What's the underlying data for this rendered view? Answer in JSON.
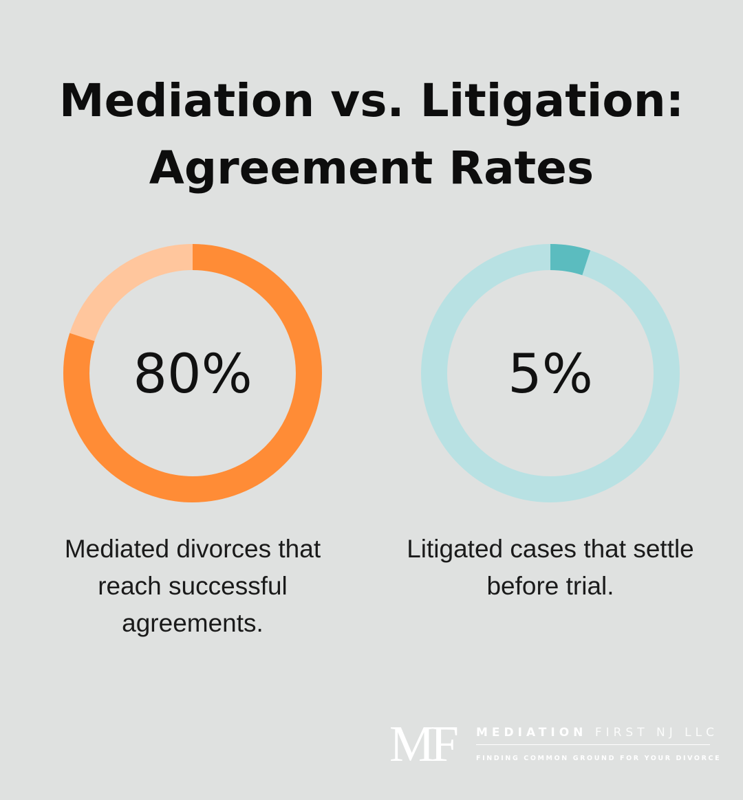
{
  "title": "Mediation vs. Litigation: Agreement Rates",
  "chart_data": [
    {
      "type": "donut",
      "value": 80,
      "label": "80%",
      "caption": "Mediated divorces that reach successful agreements.",
      "colors": {
        "filled": "#ff8c36",
        "remainder": "#ffc69d"
      }
    },
    {
      "type": "donut",
      "value": 5,
      "label": "5%",
      "caption": "Litigated cases that settle before trial.",
      "colors": {
        "filled": "#5bbcbf",
        "remainder": "#b8e1e3"
      }
    }
  ],
  "logo": {
    "mark": "MF",
    "name_bold": "MEDIATION",
    "name_light": "FIRST NJ LLC",
    "tagline": "FINDING COMMON GROUND FOR YOUR DIVORCE"
  },
  "colors": {
    "background": "#dfe1e0"
  }
}
